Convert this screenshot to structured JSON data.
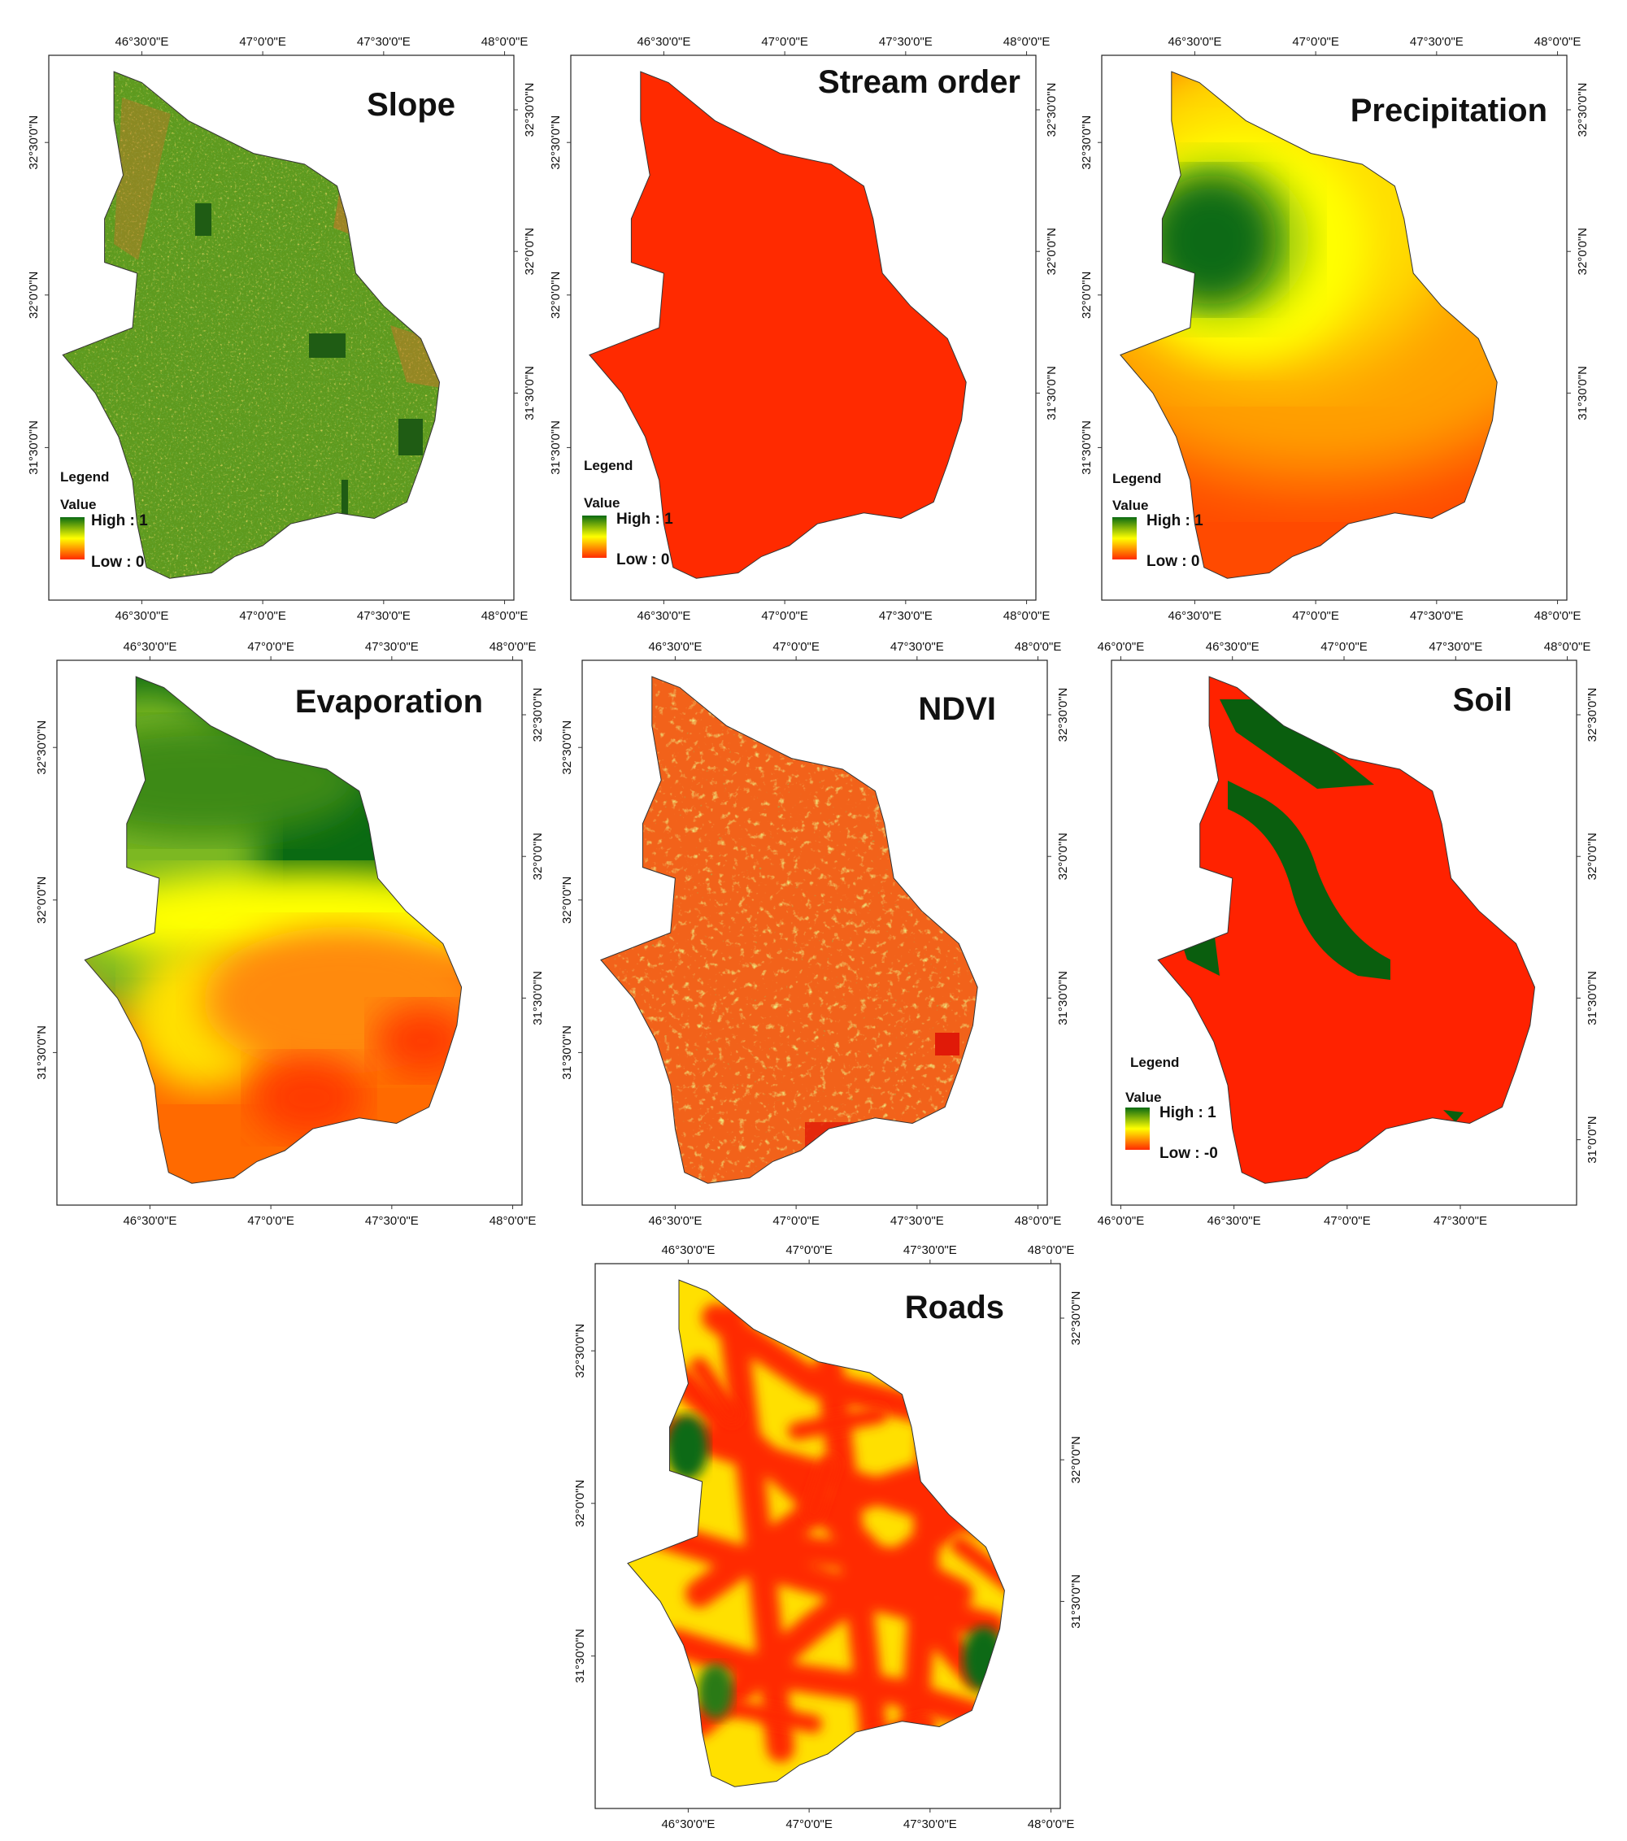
{
  "figure": {
    "panels": [
      {
        "id": "slope",
        "title": "Slope",
        "top_ticks": [
          "46°30'0\"E",
          "47°0'0\"E",
          "47°30'0\"E",
          "48°0'0\"E"
        ],
        "bottom_ticks": [
          "46°30'0\"E",
          "47°0'0\"E",
          "47°30'0\"E",
          "48°0'0\"E"
        ],
        "left_ticks": [
          "32°30'0\"N",
          "32°0'0\"N",
          "31°30'0\"N"
        ],
        "right_ticks": [
          "32°30'0\"N",
          "32°0'0\"N",
          "31°30'0\"N"
        ],
        "legend": {
          "heading": "Legend",
          "value_label": "Value",
          "high_label": "High : 1",
          "low_label": "Low : 0"
        },
        "fill_style": "noisy green with yellow/orange speckles",
        "colors": {
          "base": "#5e9a1e",
          "accent": "#d9b93a"
        }
      },
      {
        "id": "stream-order",
        "title": "Stream order",
        "top_ticks": [
          "46°30'0\"E",
          "47°0'0\"E",
          "47°30'0\"E",
          "48°0'0\"E"
        ],
        "bottom_ticks": [
          "46°30'0\"E",
          "47°0'0\"E",
          "47°30'0\"E",
          "48°0'0\"E"
        ],
        "left_ticks": [
          "32°30'0\"N",
          "32°0'0\"N",
          "31°30'0\"N"
        ],
        "right_ticks": [
          "32°30'0\"N",
          "32°0'0\"N",
          "31°30'0\"N"
        ],
        "legend": {
          "heading": "Legend",
          "value_label": "Value",
          "high_label": "High : 1",
          "low_label": "Low : 0"
        },
        "fill_style": "uniform red",
        "colors": {
          "base": "#ff2a00"
        }
      },
      {
        "id": "precipitation",
        "title": "Precipitation",
        "top_ticks": [
          "46°30'0\"E",
          "47°0'0\"E",
          "47°30'0\"E",
          "48°0'0\"E"
        ],
        "bottom_ticks": [
          "46°30'0\"E",
          "47°0'0\"E",
          "47°30'0\"E",
          "48°0'0\"E"
        ],
        "left_ticks": [
          "32°30'0\"N",
          "32°0'0\"N",
          "31°30'0\"N"
        ],
        "right_ticks": [
          "32°30'0\"N",
          "32°0'0\"N",
          "31°30'0\"N"
        ],
        "legend": {
          "heading": "Legend",
          "value_label": "Value",
          "high_label": "High : 1",
          "low_label": "Low : 0"
        },
        "fill_style": "gradient: green high in north-west, yellow ring, orange to red south",
        "colors": {
          "high": "#0a6a12",
          "mid": "#ffff00",
          "low": "#ff2a00"
        }
      },
      {
        "id": "evaporation",
        "title": "Evaporation",
        "top_ticks": [
          "46°30'0\"E",
          "47°0'0\"E",
          "47°30'0\"E",
          "48°0'0\"E"
        ],
        "bottom_ticks": [
          "46°30'0\"E",
          "47°0'0\"E",
          "47°30'0\"E",
          "48°0'0\"E"
        ],
        "left_ticks": [
          "32°30'0\"N",
          "32°0'0\"N",
          "31°30'0\"N"
        ],
        "right_ticks": [
          "32°30'0\"N",
          "32°0'0\"N",
          "31°30'0\"N"
        ],
        "legend": null,
        "fill_style": "gradient: green north, yellow band, orange/red south-east",
        "colors": {
          "high": "#0a6a12",
          "mid": "#ffff00",
          "low": "#ff3a00"
        }
      },
      {
        "id": "ndvi",
        "title": "NDVI",
        "top_ticks": [
          "46°30'0\"E",
          "47°0'0\"E",
          "47°30'0\"E",
          "48°0'0\"E"
        ],
        "bottom_ticks": [
          "46°30'0\"E",
          "47°0'0\"E",
          "47°30'0\"E",
          "48°0'0\"E"
        ],
        "left_ticks": [
          "32°30'0\"N",
          "32°0'0\"N",
          "31°30'0\"N"
        ],
        "right_ticks": [
          "32°30'0\"N",
          "32°0'0\"N",
          "31°30'0\"N"
        ],
        "legend": null,
        "fill_style": "noisy orange-red with yellow and green patches",
        "colors": {
          "base": "#f2621a",
          "accent": "#d8c43a"
        }
      },
      {
        "id": "soil",
        "title": "Soil",
        "top_ticks": [
          "46°0'0\"E",
          "46°30'0\"E",
          "47°0'0\"E",
          "47°30'0\"E",
          "48°0'0\"E"
        ],
        "bottom_ticks": [
          "46°0'0\"E",
          "46°30'0\"E",
          "47°0'0\"E",
          "47°30'0\"E"
        ],
        "left_ticks": [],
        "right_ticks": [
          "32°30'0\"N",
          "32°0'0\"N",
          "31°30'0\"N",
          "31°0'0\"N"
        ],
        "legend": {
          "heading": "Legend",
          "value_label": "Value",
          "high_label": "High : 1",
          "low_label": "Low : -0"
        },
        "fill_style": "red with two green bands",
        "colors": {
          "base": "#ff2200",
          "band": "#0a5e0e"
        }
      },
      {
        "id": "roads",
        "title": "Roads",
        "top_ticks": [
          "46°30'0\"E",
          "47°0'0\"E",
          "47°30'0\"E",
          "48°0'0\"E"
        ],
        "bottom_ticks": [
          "46°30'0\"E",
          "47°0'0\"E",
          "47°30'0\"E",
          "48°0'0\"E"
        ],
        "left_ticks": [
          "32°30'0\"N",
          "32°0'0\"N",
          "31°30'0\"N"
        ],
        "right_ticks": [
          "32°30'0\"N",
          "32°0'0\"N",
          "31°30'0\"N"
        ],
        "legend": null,
        "fill_style": "red network with yellow gaps and green spots",
        "colors": {
          "base": "#ff2a00",
          "gap": "#ffe000",
          "far": "#0a6a12"
        }
      }
    ]
  }
}
